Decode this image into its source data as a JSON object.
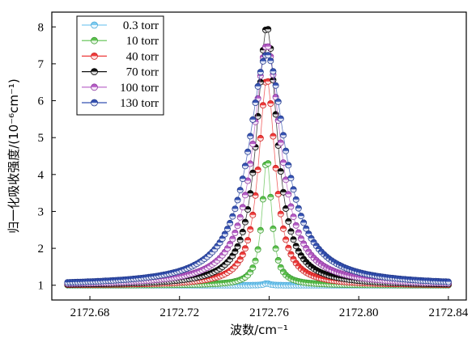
{
  "chart_data": {
    "type": "scatter",
    "xlabel": "波数/cm⁻¹",
    "ylabel": "归一化吸收强度/(10⁻⁶cm⁻¹)",
    "xlim": [
      2172.663,
      2172.848
    ],
    "ylim": [
      0.6,
      8.4
    ],
    "xticks": [
      {
        "value": 2172.68,
        "label": "2172.68"
      },
      {
        "value": 2172.72,
        "label": "2172.72"
      },
      {
        "value": 2172.76,
        "label": "2172.76"
      },
      {
        "value": 2172.8,
        "label": "2172.80"
      },
      {
        "value": 2172.84,
        "label": "2172.84"
      }
    ],
    "yticks": [
      {
        "value": 1,
        "label": "1"
      },
      {
        "value": 2,
        "label": "2"
      },
      {
        "value": 3,
        "label": "3"
      },
      {
        "value": 4,
        "label": "4"
      },
      {
        "value": 5,
        "label": "5"
      },
      {
        "value": 6,
        "label": "6"
      },
      {
        "value": 7,
        "label": "7"
      },
      {
        "value": 8,
        "label": "8"
      }
    ],
    "grid": false,
    "legend_position": "top-left",
    "x_range": [
      2172.67,
      2172.84
    ],
    "center": 2172.759,
    "series": [
      {
        "name": "0.3 torr",
        "color": "#7ecbf0",
        "edge": "#4aa9d8",
        "peak": 1.05,
        "hwhm": 0.0015
      },
      {
        "name": "10 torr",
        "color": "#5cc14e",
        "edge": "#3a9a30",
        "peak": 4.45,
        "hwhm": 0.0025
      },
      {
        "name": "40 torr",
        "color": "#ee3a3a",
        "edge": "#c81e1e",
        "peak": 6.6,
        "hwhm": 0.0045
      },
      {
        "name": "70 torr",
        "color": "#111111",
        "edge": "#000000",
        "peak": 8.0,
        "hwhm": 0.0055
      },
      {
        "name": "100 torr",
        "color": "#b65cc6",
        "edge": "#8d3a9e",
        "peak": 7.5,
        "hwhm": 0.0075
      },
      {
        "name": "130 torr",
        "color": "#3552b2",
        "edge": "#22398c",
        "peak": 7.25,
        "hwhm": 0.01
      }
    ]
  }
}
